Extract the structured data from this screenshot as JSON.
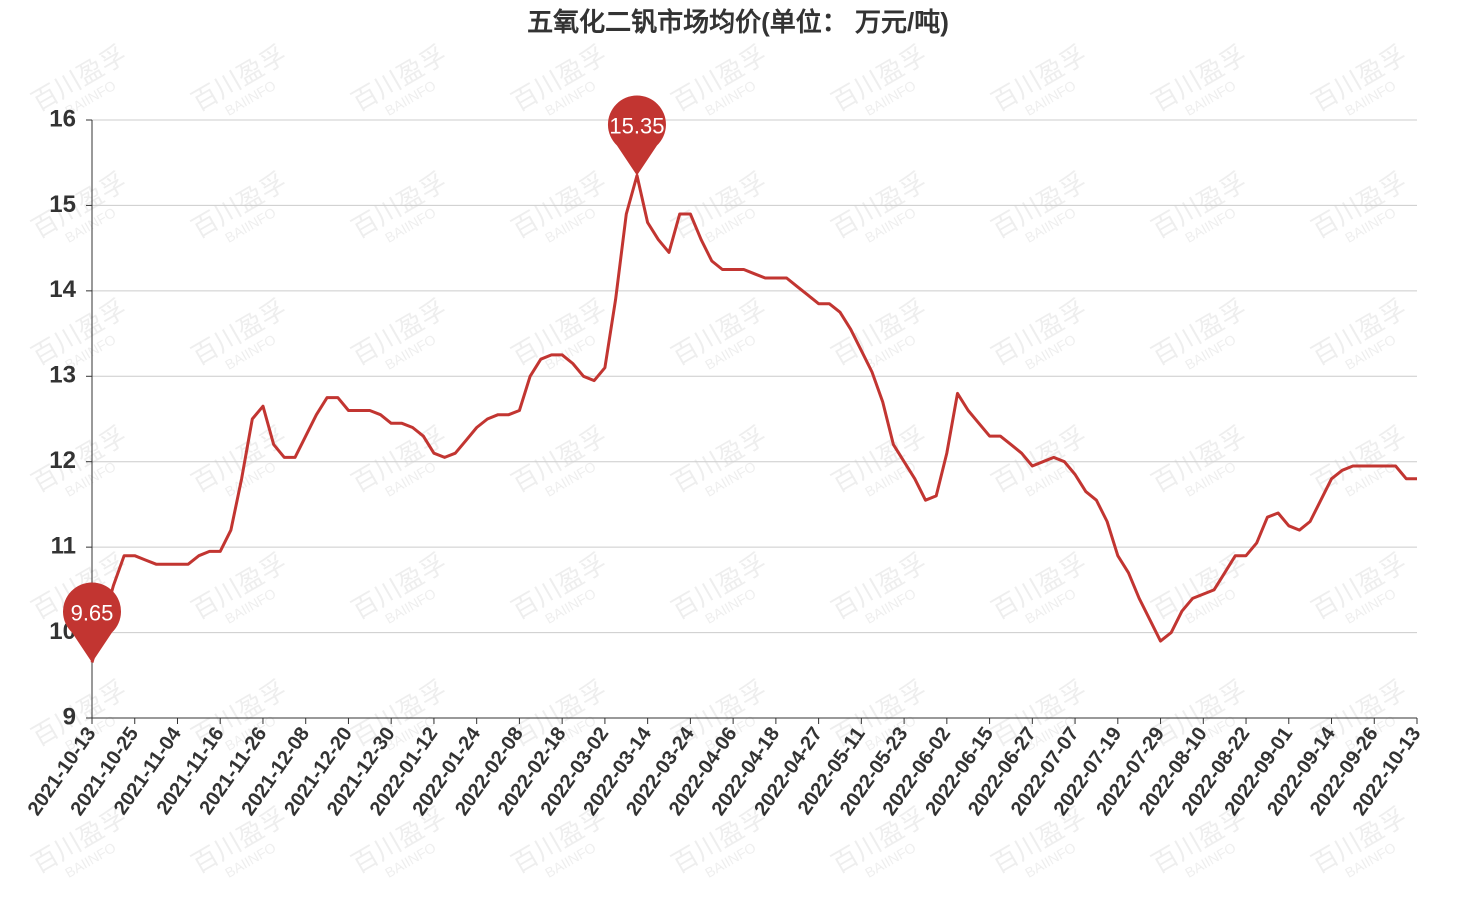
{
  "chart_data": {
    "type": "line",
    "title": "五氧化二钒市场均价(单位： 万元/吨)",
    "watermark": [
      "百川盈孚",
      "BAIINFO"
    ],
    "categories": [
      "2021-10-13",
      null,
      null,
      null,
      "2021-10-25",
      null,
      null,
      null,
      "2021-11-04",
      null,
      null,
      null,
      "2021-11-16",
      null,
      null,
      null,
      "2021-11-26",
      null,
      null,
      null,
      "2021-12-08",
      null,
      null,
      null,
      "2021-12-20",
      null,
      null,
      null,
      "2021-12-30",
      null,
      null,
      null,
      "2022-01-12",
      null,
      null,
      null,
      "2022-01-24",
      null,
      null,
      null,
      "2022-02-08",
      null,
      null,
      null,
      "2022-02-18",
      null,
      null,
      null,
      "2022-03-02",
      null,
      null,
      null,
      "2022-03-14",
      null,
      null,
      null,
      "2022-03-24",
      null,
      null,
      null,
      "2022-04-06",
      null,
      null,
      null,
      "2022-04-18",
      null,
      null,
      null,
      "2022-04-27",
      null,
      null,
      null,
      "2022-05-11",
      null,
      null,
      null,
      "2022-05-23",
      null,
      null,
      null,
      "2022-06-02",
      null,
      null,
      null,
      "2022-06-15",
      null,
      null,
      null,
      "2022-06-27",
      null,
      null,
      null,
      "2022-07-07",
      null,
      null,
      null,
      "2022-07-19",
      null,
      null,
      null,
      "2022-07-29",
      null,
      null,
      null,
      "2022-08-10",
      null,
      null,
      null,
      "2022-08-22",
      null,
      null,
      null,
      "2022-09-01",
      null,
      null,
      null,
      "2022-09-14",
      null,
      null,
      null,
      "2022-09-26",
      null,
      null,
      null,
      "2022-10-13"
    ],
    "values": [
      9.65,
      10.1,
      10.55,
      10.9,
      10.9,
      10.85,
      10.8,
      10.8,
      10.8,
      10.8,
      10.9,
      10.95,
      10.95,
      11.2,
      11.8,
      12.5,
      12.65,
      12.2,
      12.05,
      12.05,
      12.3,
      12.55,
      12.75,
      12.75,
      12.6,
      12.6,
      12.6,
      12.55,
      12.45,
      12.45,
      12.4,
      12.3,
      12.1,
      12.05,
      12.1,
      12.25,
      12.4,
      12.5,
      12.55,
      12.55,
      12.6,
      13.0,
      13.2,
      13.25,
      13.25,
      13.15,
      13.0,
      12.95,
      13.1,
      13.9,
      14.9,
      15.35,
      14.8,
      14.6,
      14.45,
      14.9,
      14.9,
      14.6,
      14.35,
      14.25,
      14.25,
      14.25,
      14.2,
      14.15,
      14.15,
      14.15,
      14.05,
      13.95,
      13.85,
      13.85,
      13.75,
      13.55,
      13.3,
      13.05,
      12.7,
      12.2,
      12.0,
      11.8,
      11.55,
      11.6,
      12.1,
      12.8,
      12.6,
      12.45,
      12.3,
      12.3,
      12.2,
      12.1,
      11.95,
      12.0,
      12.05,
      12.0,
      11.85,
      11.65,
      11.55,
      11.3,
      10.9,
      10.7,
      10.4,
      10.15,
      9.9,
      10.0,
      10.25,
      10.4,
      10.45,
      10.5,
      10.7,
      10.9,
      10.9,
      11.05,
      11.35,
      11.4,
      11.25,
      11.2,
      11.3,
      11.55,
      11.8,
      11.9,
      11.95,
      11.95,
      11.95,
      11.95,
      11.95,
      11.8,
      11.8
    ],
    "color": "#c23531",
    "ylim": [
      9,
      16
    ],
    "yticks": [
      9,
      10,
      11,
      12,
      13,
      14,
      15,
      16
    ],
    "grid": true,
    "mark_extremes": true
  }
}
